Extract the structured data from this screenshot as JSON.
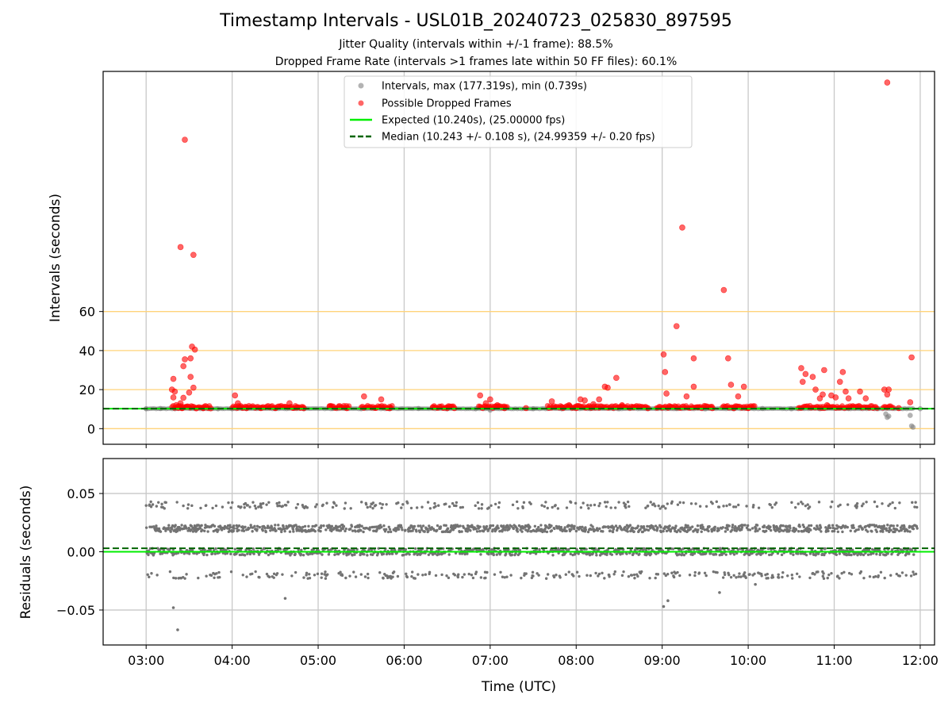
{
  "figure": {
    "title": "Timestamp Intervals - USL01B_20240723_025830_897595",
    "subtitle_1": "Jitter Quality (intervals within +/-1 frame): 88.5%",
    "subtitle_2": "Dropped Frame Rate (intervals >1 frames late within 50 FF files): 60.1%"
  },
  "chart_data": [
    {
      "type": "scatter",
      "ylabel": "Intervals (seconds)",
      "xlabel": "",
      "xlim": [
        "02:30",
        "12:10"
      ],
      "ylim": [
        -8,
        183
      ],
      "y_ticks": [
        0,
        20,
        40,
        60
      ],
      "x_ticks": [
        "03:00",
        "04:00",
        "05:00",
        "06:00",
        "07:00",
        "08:00",
        "09:00",
        "10:00",
        "11:00",
        "12:00"
      ],
      "reference_lines": [
        {
          "y": 0,
          "color": "#ffd37a"
        },
        {
          "y": 20,
          "color": "#ffd37a"
        },
        {
          "y": 40,
          "color": "#ffd37a"
        },
        {
          "y": 60,
          "color": "#ffd37a"
        }
      ],
      "grid": "vertical",
      "legend_position": "upper center",
      "legend": [
        "Intervals, max (177.319s), min (0.739s)",
        "Possible Dropped Frames",
        "Expected (10.240s), (25.00000 fps)",
        "Median (10.243 +/- 0.108 s), (24.99359 +/- 0.20 fps)"
      ],
      "expected_interval": 10.24,
      "median_interval": 10.243,
      "colors": {
        "intervals": "#808080",
        "dropped": "#ff0000",
        "expected": "#00ee00",
        "median": "#006400"
      },
      "series": [
        {
          "name": "Intervals, max (177.319s), min (0.739s)",
          "points": [
            [
              "03:00",
              10.2
            ],
            [
              "03:10",
              10.3
            ],
            [
              "03:20",
              10.2
            ],
            [
              "03:40",
              10.3
            ],
            [
              "03:50",
              10.2
            ],
            [
              "04:00",
              10.2
            ],
            [
              "04:10",
              10.3
            ],
            [
              "04:30",
              10.2
            ],
            [
              "04:50",
              10.2
            ],
            [
              "05:10",
              10.3
            ],
            [
              "05:30",
              10.2
            ],
            [
              "05:50",
              10.2
            ],
            [
              "06:10",
              10.3
            ],
            [
              "06:30",
              10.2
            ],
            [
              "06:50",
              10.2
            ],
            [
              "07:00",
              9.5
            ],
            [
              "07:10",
              10.3
            ],
            [
              "07:30",
              10.2
            ],
            [
              "07:50",
              10.2
            ],
            [
              "08:10",
              10.3
            ],
            [
              "08:30",
              10.2
            ],
            [
              "08:50",
              10.2
            ],
            [
              "09:10",
              10.3
            ],
            [
              "09:30",
              10.2
            ],
            [
              "09:50",
              10.2
            ],
            [
              "10:10",
              10.3
            ],
            [
              "10:30",
              10.2
            ],
            [
              "10:50",
              10.2
            ],
            [
              "11:10",
              10.3
            ],
            [
              "11:30",
              10.2
            ],
            [
              "11:36",
              7.5
            ],
            [
              "11:37",
              5.8
            ],
            [
              "11:38",
              6.4
            ],
            [
              "11:53",
              6.8
            ],
            [
              "11:54",
              1.4
            ],
            [
              "11:55",
              0.74
            ],
            [
              "12:00",
              10.2
            ]
          ]
        },
        {
          "name": "Possible Dropped Frames",
          "points": [
            [
              "03:27",
              148
            ],
            [
              "03:24",
              93
            ],
            [
              "03:33",
              89
            ],
            [
              "03:32",
              42
            ],
            [
              "03:34",
              40.5
            ],
            [
              "03:27",
              35.5
            ],
            [
              "03:31",
              36
            ],
            [
              "03:26",
              32
            ],
            [
              "03:31",
              26.5
            ],
            [
              "03:19",
              25.5
            ],
            [
              "03:18",
              20
            ],
            [
              "03:20",
              19
            ],
            [
              "03:33",
              21
            ],
            [
              "03:30",
              18.5
            ],
            [
              "03:26",
              15.8
            ],
            [
              "03:19",
              16
            ],
            [
              "03:24",
              13
            ],
            [
              "03:21",
              12
            ],
            [
              "03:23",
              11.5
            ],
            [
              "03:28",
              11.2
            ],
            [
              "03:25",
              10.5
            ],
            [
              "03:35",
              10.4
            ],
            [
              "03:40",
              10.5
            ],
            [
              "03:45",
              10.4
            ],
            [
              "04:02",
              17
            ],
            [
              "04:04",
              13
            ],
            [
              "04:06",
              11.5
            ],
            [
              "04:10",
              10.5
            ],
            [
              "04:20",
              10.5
            ],
            [
              "04:30",
              10.6
            ],
            [
              "04:40",
              13
            ],
            [
              "04:45",
              11
            ],
            [
              "04:50",
              10.5
            ],
            [
              "05:08",
              11.5
            ],
            [
              "05:15",
              11.5
            ],
            [
              "05:20",
              10.5
            ],
            [
              "05:32",
              16.5
            ],
            [
              "05:40",
              10.6
            ],
            [
              "05:44",
              15
            ],
            [
              "05:50",
              10.5
            ],
            [
              "06:20",
              11
            ],
            [
              "06:30",
              10.5
            ],
            [
              "06:35",
              10.5
            ],
            [
              "06:53",
              17
            ],
            [
              "06:57",
              13
            ],
            [
              "07:00",
              15
            ],
            [
              "07:05",
              12
            ],
            [
              "07:10",
              10.5
            ],
            [
              "07:25",
              10.5
            ],
            [
              "07:43",
              14
            ],
            [
              "07:50",
              11
            ],
            [
              "07:55",
              12
            ],
            [
              "08:00",
              10.5
            ],
            [
              "08:03",
              15
            ],
            [
              "08:06",
              14.5
            ],
            [
              "08:09",
              11.5
            ],
            [
              "08:12",
              12.5
            ],
            [
              "08:16",
              15
            ],
            [
              "08:20",
              21.5
            ],
            [
              "08:22",
              21
            ],
            [
              "08:28",
              26
            ],
            [
              "08:32",
              12
            ],
            [
              "08:40",
              11
            ],
            [
              "08:50",
              10.5
            ],
            [
              "09:01",
              38
            ],
            [
              "09:02",
              29
            ],
            [
              "09:03",
              18
            ],
            [
              "09:05",
              11.5
            ],
            [
              "09:10",
              52.5
            ],
            [
              "09:14",
              103
            ],
            [
              "09:17",
              16.5
            ],
            [
              "09:22",
              36
            ],
            [
              "09:22",
              21.5
            ],
            [
              "09:25",
              11
            ],
            [
              "09:35",
              10.5
            ],
            [
              "09:43",
              71
            ],
            [
              "09:46",
              36
            ],
            [
              "09:48",
              22.5
            ],
            [
              "09:53",
              16.5
            ],
            [
              "09:57",
              21.5
            ],
            [
              "09:50",
              10.5
            ],
            [
              "10:00",
              10.5
            ],
            [
              "10:37",
              31
            ],
            [
              "10:38",
              24
            ],
            [
              "10:40",
              28
            ],
            [
              "10:45",
              26.5
            ],
            [
              "10:47",
              20
            ],
            [
              "10:50",
              15.5
            ],
            [
              "10:52",
              17.5
            ],
            [
              "10:53",
              30
            ],
            [
              "10:55",
              12
            ],
            [
              "10:58",
              17
            ],
            [
              "11:01",
              16
            ],
            [
              "11:04",
              24
            ],
            [
              "11:06",
              29
            ],
            [
              "11:08",
              19
            ],
            [
              "11:10",
              15.5
            ],
            [
              "11:13",
              11.5
            ],
            [
              "11:18",
              19
            ],
            [
              "11:22",
              15.5
            ],
            [
              "11:35",
              20
            ],
            [
              "11:37",
              17.5
            ],
            [
              "11:38",
              20
            ],
            [
              "11:37",
              177.3
            ],
            [
              "11:54",
              36.5
            ],
            [
              "11:53",
              13.5
            ],
            [
              "11:45",
              10.5
            ]
          ]
        }
      ]
    },
    {
      "type": "scatter",
      "ylabel": "Residuals (seconds)",
      "xlabel": "Time (UTC)",
      "xlim": [
        "02:30",
        "12:10"
      ],
      "ylim": [
        -0.08,
        0.08
      ],
      "y_ticks": [
        "0.05",
        "0.00",
        "−0.05"
      ],
      "x_ticks": [
        "03:00",
        "04:00",
        "05:00",
        "06:00",
        "07:00",
        "08:00",
        "09:00",
        "10:00",
        "11:00",
        "12:00"
      ],
      "grid": "both",
      "expected_residual": 0.0,
      "median_residual": 0.003,
      "colors": {
        "residuals": "#737373",
        "expected": "#00ee00",
        "median": "#006400"
      },
      "residual_levels": [
        0.04,
        0.02,
        0.0,
        -0.02
      ],
      "outliers": [
        [
          "03:19",
          -0.048
        ],
        [
          "03:22",
          -0.067
        ],
        [
          "04:37",
          -0.04
        ],
        [
          "09:01",
          -0.047
        ],
        [
          "09:04",
          -0.042
        ],
        [
          "09:40",
          -0.035
        ],
        [
          "10:05",
          -0.028
        ]
      ]
    }
  ]
}
